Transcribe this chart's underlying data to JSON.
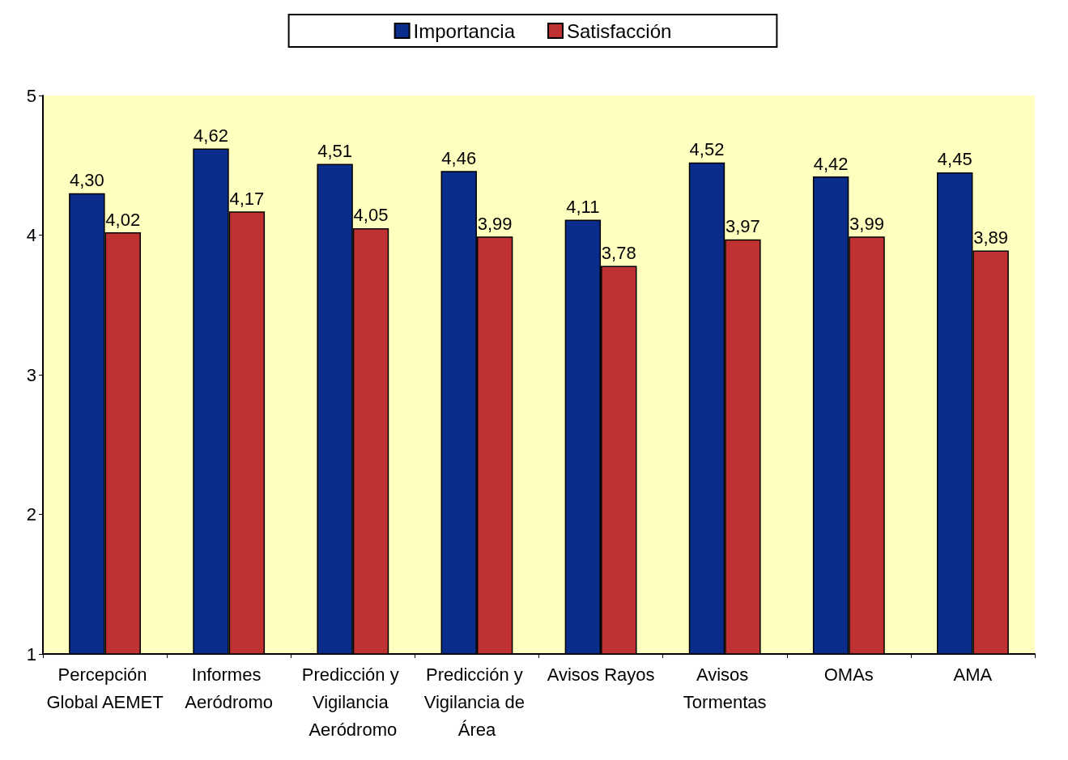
{
  "chart_data": {
    "type": "bar",
    "categories": [
      "Percepción Global AEMET",
      "Informes Aeródromo",
      "Predicción y Vigilancia Aeródromo",
      "Predicción y Vigilancia de Área",
      "Avisos Rayos",
      "Avisos Tormentas",
      "OMAs",
      "AMA"
    ],
    "series": [
      {
        "name": "Importancia",
        "color": "#0a2d8c",
        "values": [
          4.3,
          4.62,
          4.51,
          4.46,
          4.11,
          4.52,
          4.42,
          4.45
        ],
        "value_labels": [
          "4,30",
          "4,62",
          "4,51",
          "4,46",
          "4,11",
          "4,52",
          "4,42",
          "4,45"
        ]
      },
      {
        "name": "Satisfacción",
        "color": "#c03232",
        "values": [
          4.02,
          4.17,
          4.05,
          3.99,
          3.78,
          3.97,
          3.99,
          3.89
        ],
        "value_labels": [
          "4,02",
          "4,17",
          "4,05",
          "3,99",
          "3,78",
          "3,97",
          "3,99",
          "3,89"
        ]
      }
    ],
    "ylim": [
      1,
      5
    ],
    "yticks": [
      1,
      2,
      3,
      4,
      5
    ],
    "grid": false,
    "legend": "top"
  }
}
